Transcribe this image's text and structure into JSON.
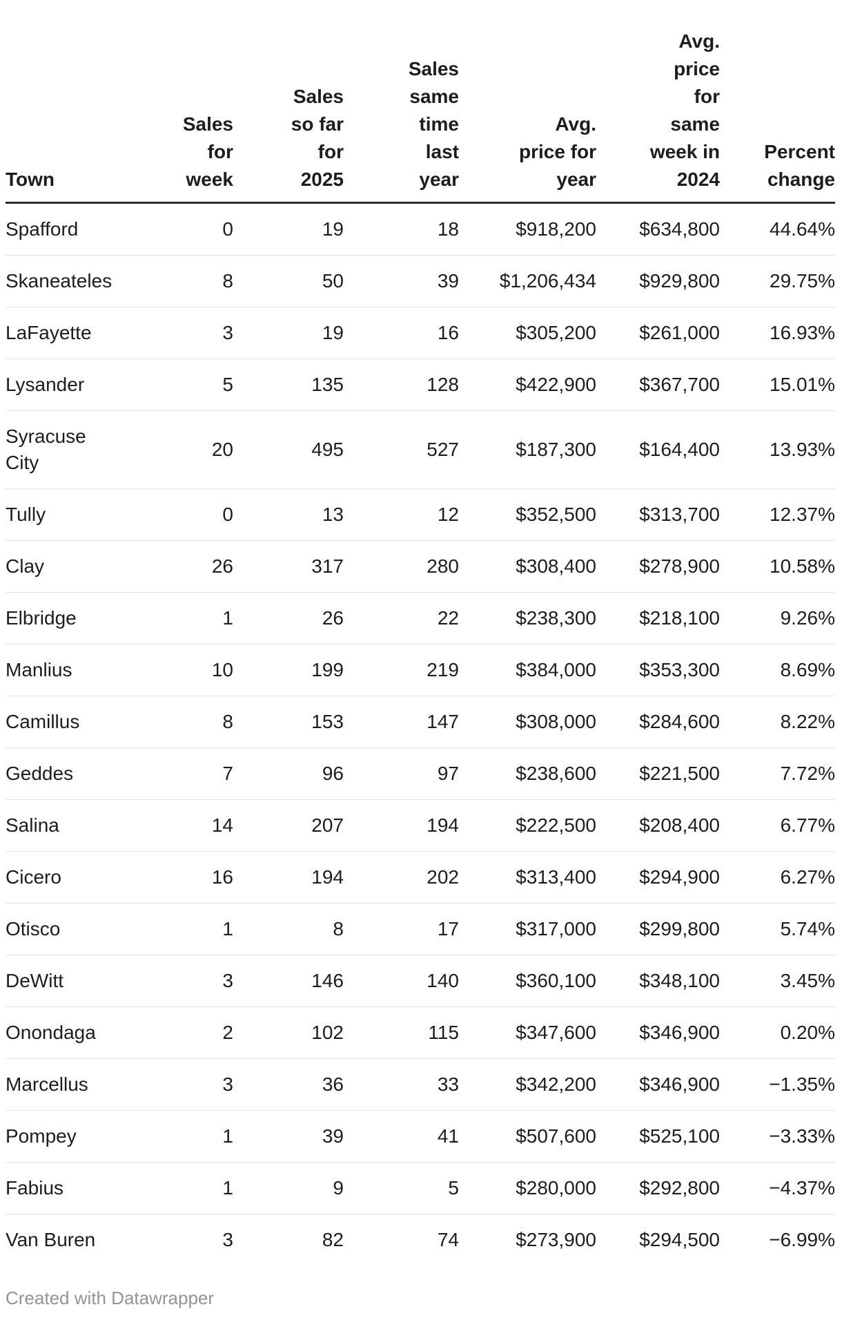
{
  "table": {
    "columns": [
      {
        "key": "town",
        "label": "Town",
        "align": "left"
      },
      {
        "key": "sales_week",
        "label": "Sales\nfor\nweek",
        "align": "right"
      },
      {
        "key": "sales_2025",
        "label": "Sales\nso far\nfor\n2025",
        "align": "right"
      },
      {
        "key": "sales_last_year",
        "label": "Sales\nsame\ntime\nlast\nyear",
        "align": "right"
      },
      {
        "key": "avg_price_year",
        "label": "Avg.\nprice for\nyear",
        "align": "right"
      },
      {
        "key": "avg_price_2024",
        "label": "Avg.\nprice\nfor\nsame\nweek in\n2024",
        "align": "right"
      },
      {
        "key": "percent_change",
        "label": "Percent\nchange",
        "align": "right"
      }
    ],
    "rows": [
      {
        "town": "Spafford",
        "sales_week": "0",
        "sales_2025": "19",
        "sales_last_year": "18",
        "avg_price_year": "$918,200",
        "avg_price_2024": "$634,800",
        "percent_change": "44.64%"
      },
      {
        "town": "Skaneateles",
        "sales_week": "8",
        "sales_2025": "50",
        "sales_last_year": "39",
        "avg_price_year": "$1,206,434",
        "avg_price_2024": "$929,800",
        "percent_change": "29.75%"
      },
      {
        "town": "LaFayette",
        "sales_week": "3",
        "sales_2025": "19",
        "sales_last_year": "16",
        "avg_price_year": "$305,200",
        "avg_price_2024": "$261,000",
        "percent_change": "16.93%"
      },
      {
        "town": "Lysander",
        "sales_week": "5",
        "sales_2025": "135",
        "sales_last_year": "128",
        "avg_price_year": "$422,900",
        "avg_price_2024": "$367,700",
        "percent_change": "15.01%"
      },
      {
        "town": "Syracuse City",
        "sales_week": "20",
        "sales_2025": "495",
        "sales_last_year": "527",
        "avg_price_year": "$187,300",
        "avg_price_2024": "$164,400",
        "percent_change": "13.93%"
      },
      {
        "town": "Tully",
        "sales_week": "0",
        "sales_2025": "13",
        "sales_last_year": "12",
        "avg_price_year": "$352,500",
        "avg_price_2024": "$313,700",
        "percent_change": "12.37%"
      },
      {
        "town": "Clay",
        "sales_week": "26",
        "sales_2025": "317",
        "sales_last_year": "280",
        "avg_price_year": "$308,400",
        "avg_price_2024": "$278,900",
        "percent_change": "10.58%"
      },
      {
        "town": "Elbridge",
        "sales_week": "1",
        "sales_2025": "26",
        "sales_last_year": "22",
        "avg_price_year": "$238,300",
        "avg_price_2024": "$218,100",
        "percent_change": "9.26%"
      },
      {
        "town": "Manlius",
        "sales_week": "10",
        "sales_2025": "199",
        "sales_last_year": "219",
        "avg_price_year": "$384,000",
        "avg_price_2024": "$353,300",
        "percent_change": "8.69%"
      },
      {
        "town": "Camillus",
        "sales_week": "8",
        "sales_2025": "153",
        "sales_last_year": "147",
        "avg_price_year": "$308,000",
        "avg_price_2024": "$284,600",
        "percent_change": "8.22%"
      },
      {
        "town": "Geddes",
        "sales_week": "7",
        "sales_2025": "96",
        "sales_last_year": "97",
        "avg_price_year": "$238,600",
        "avg_price_2024": "$221,500",
        "percent_change": "7.72%"
      },
      {
        "town": "Salina",
        "sales_week": "14",
        "sales_2025": "207",
        "sales_last_year": "194",
        "avg_price_year": "$222,500",
        "avg_price_2024": "$208,400",
        "percent_change": "6.77%"
      },
      {
        "town": "Cicero",
        "sales_week": "16",
        "sales_2025": "194",
        "sales_last_year": "202",
        "avg_price_year": "$313,400",
        "avg_price_2024": "$294,900",
        "percent_change": "6.27%"
      },
      {
        "town": "Otisco",
        "sales_week": "1",
        "sales_2025": "8",
        "sales_last_year": "17",
        "avg_price_year": "$317,000",
        "avg_price_2024": "$299,800",
        "percent_change": "5.74%"
      },
      {
        "town": "DeWitt",
        "sales_week": "3",
        "sales_2025": "146",
        "sales_last_year": "140",
        "avg_price_year": "$360,100",
        "avg_price_2024": "$348,100",
        "percent_change": "3.45%"
      },
      {
        "town": "Onondaga",
        "sales_week": "2",
        "sales_2025": "102",
        "sales_last_year": "115",
        "avg_price_year": "$347,600",
        "avg_price_2024": "$346,900",
        "percent_change": "0.20%"
      },
      {
        "town": "Marcellus",
        "sales_week": "3",
        "sales_2025": "36",
        "sales_last_year": "33",
        "avg_price_year": "$342,200",
        "avg_price_2024": "$346,900",
        "percent_change": "−1.35%"
      },
      {
        "town": "Pompey",
        "sales_week": "1",
        "sales_2025": "39",
        "sales_last_year": "41",
        "avg_price_year": "$507,600",
        "avg_price_2024": "$525,100",
        "percent_change": "−3.33%"
      },
      {
        "town": "Fabius",
        "sales_week": "1",
        "sales_2025": "9",
        "sales_last_year": "5",
        "avg_price_year": "$280,000",
        "avg_price_2024": "$292,800",
        "percent_change": "−4.37%"
      },
      {
        "town": "Van Buren",
        "sales_week": "3",
        "sales_2025": "82",
        "sales_last_year": "74",
        "avg_price_year": "$273,900",
        "avg_price_2024": "$294,500",
        "percent_change": "−6.99%"
      }
    ]
  },
  "footer": {
    "attribution": "Created with Datawrapper"
  },
  "colors": {
    "body_text": "#1d1d1d",
    "header_border": "#2e2e2e",
    "row_border": "#e3e3e3",
    "footer_text": "#949494",
    "background": "#ffffff"
  },
  "chart_data": {
    "type": "table",
    "columns": [
      "Town",
      "Sales for week",
      "Sales so far for 2025",
      "Sales same time last year",
      "Avg. price for year",
      "Avg. price for same week in 2024",
      "Percent change"
    ],
    "rows": [
      [
        "Spafford",
        0,
        19,
        18,
        918200,
        634800,
        44.64
      ],
      [
        "Skaneateles",
        8,
        50,
        39,
        1206434,
        929800,
        29.75
      ],
      [
        "LaFayette",
        3,
        19,
        16,
        305200,
        261000,
        16.93
      ],
      [
        "Lysander",
        5,
        135,
        128,
        422900,
        367700,
        15.01
      ],
      [
        "Syracuse City",
        20,
        495,
        527,
        187300,
        164400,
        13.93
      ],
      [
        "Tully",
        0,
        13,
        12,
        352500,
        313700,
        12.37
      ],
      [
        "Clay",
        26,
        317,
        280,
        308400,
        278900,
        10.58
      ],
      [
        "Elbridge",
        1,
        26,
        22,
        238300,
        218100,
        9.26
      ],
      [
        "Manlius",
        10,
        199,
        219,
        384000,
        353300,
        8.69
      ],
      [
        "Camillus",
        8,
        153,
        147,
        308000,
        284600,
        8.22
      ],
      [
        "Geddes",
        7,
        96,
        97,
        238600,
        221500,
        7.72
      ],
      [
        "Salina",
        14,
        207,
        194,
        222500,
        208400,
        6.77
      ],
      [
        "Cicero",
        16,
        194,
        202,
        313400,
        294900,
        6.27
      ],
      [
        "Otisco",
        1,
        8,
        17,
        317000,
        299800,
        5.74
      ],
      [
        "DeWitt",
        3,
        146,
        140,
        360100,
        348100,
        3.45
      ],
      [
        "Onondaga",
        2,
        102,
        115,
        347600,
        346900,
        0.2
      ],
      [
        "Marcellus",
        3,
        36,
        33,
        342200,
        346900,
        -1.35
      ],
      [
        "Pompey",
        1,
        39,
        41,
        507600,
        525100,
        -3.33
      ],
      [
        "Fabius",
        1,
        9,
        5,
        280000,
        292800,
        -4.37
      ],
      [
        "Van Buren",
        3,
        82,
        74,
        273900,
        294500,
        -6.99
      ]
    ],
    "title": "",
    "legend": null,
    "grid": "horizontal-row-separators"
  }
}
